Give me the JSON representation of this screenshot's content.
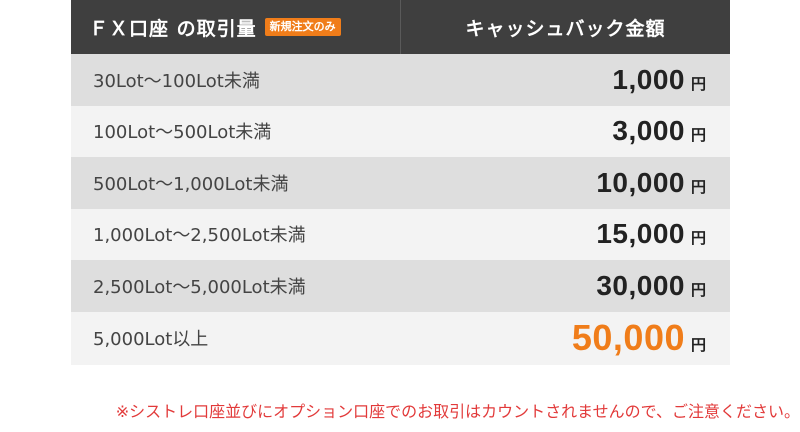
{
  "header": {
    "left_label": "ＦＸ口座 の取引量",
    "badge": "新規注文のみ",
    "right_label": "キャッシュバック金額"
  },
  "rows": [
    {
      "range": "30Lot〜100Lot未満",
      "amount": "1,000",
      "unit": "円"
    },
    {
      "range": "100Lot〜500Lot未満",
      "amount": "3,000",
      "unit": "円"
    },
    {
      "range": "500Lot〜1,000Lot未満",
      "amount": "10,000",
      "unit": "円"
    },
    {
      "range": "1,000Lot〜2,500Lot未満",
      "amount": "15,000",
      "unit": "円"
    },
    {
      "range": "2,500Lot〜5,000Lot未満",
      "amount": "30,000",
      "unit": "円"
    },
    {
      "range": "5,000Lot以上",
      "amount": "50,000",
      "unit": "円"
    }
  ],
  "note": "※シストレ口座並びにオプション口座でのお取引はカウントされませんので、ご注意ください。",
  "colors": {
    "header_bg": "#3f3f3f",
    "accent": "#f07d1a",
    "row_odd": "#dedede",
    "row_even": "#f3f3f3",
    "note_text": "#e23a3a"
  }
}
